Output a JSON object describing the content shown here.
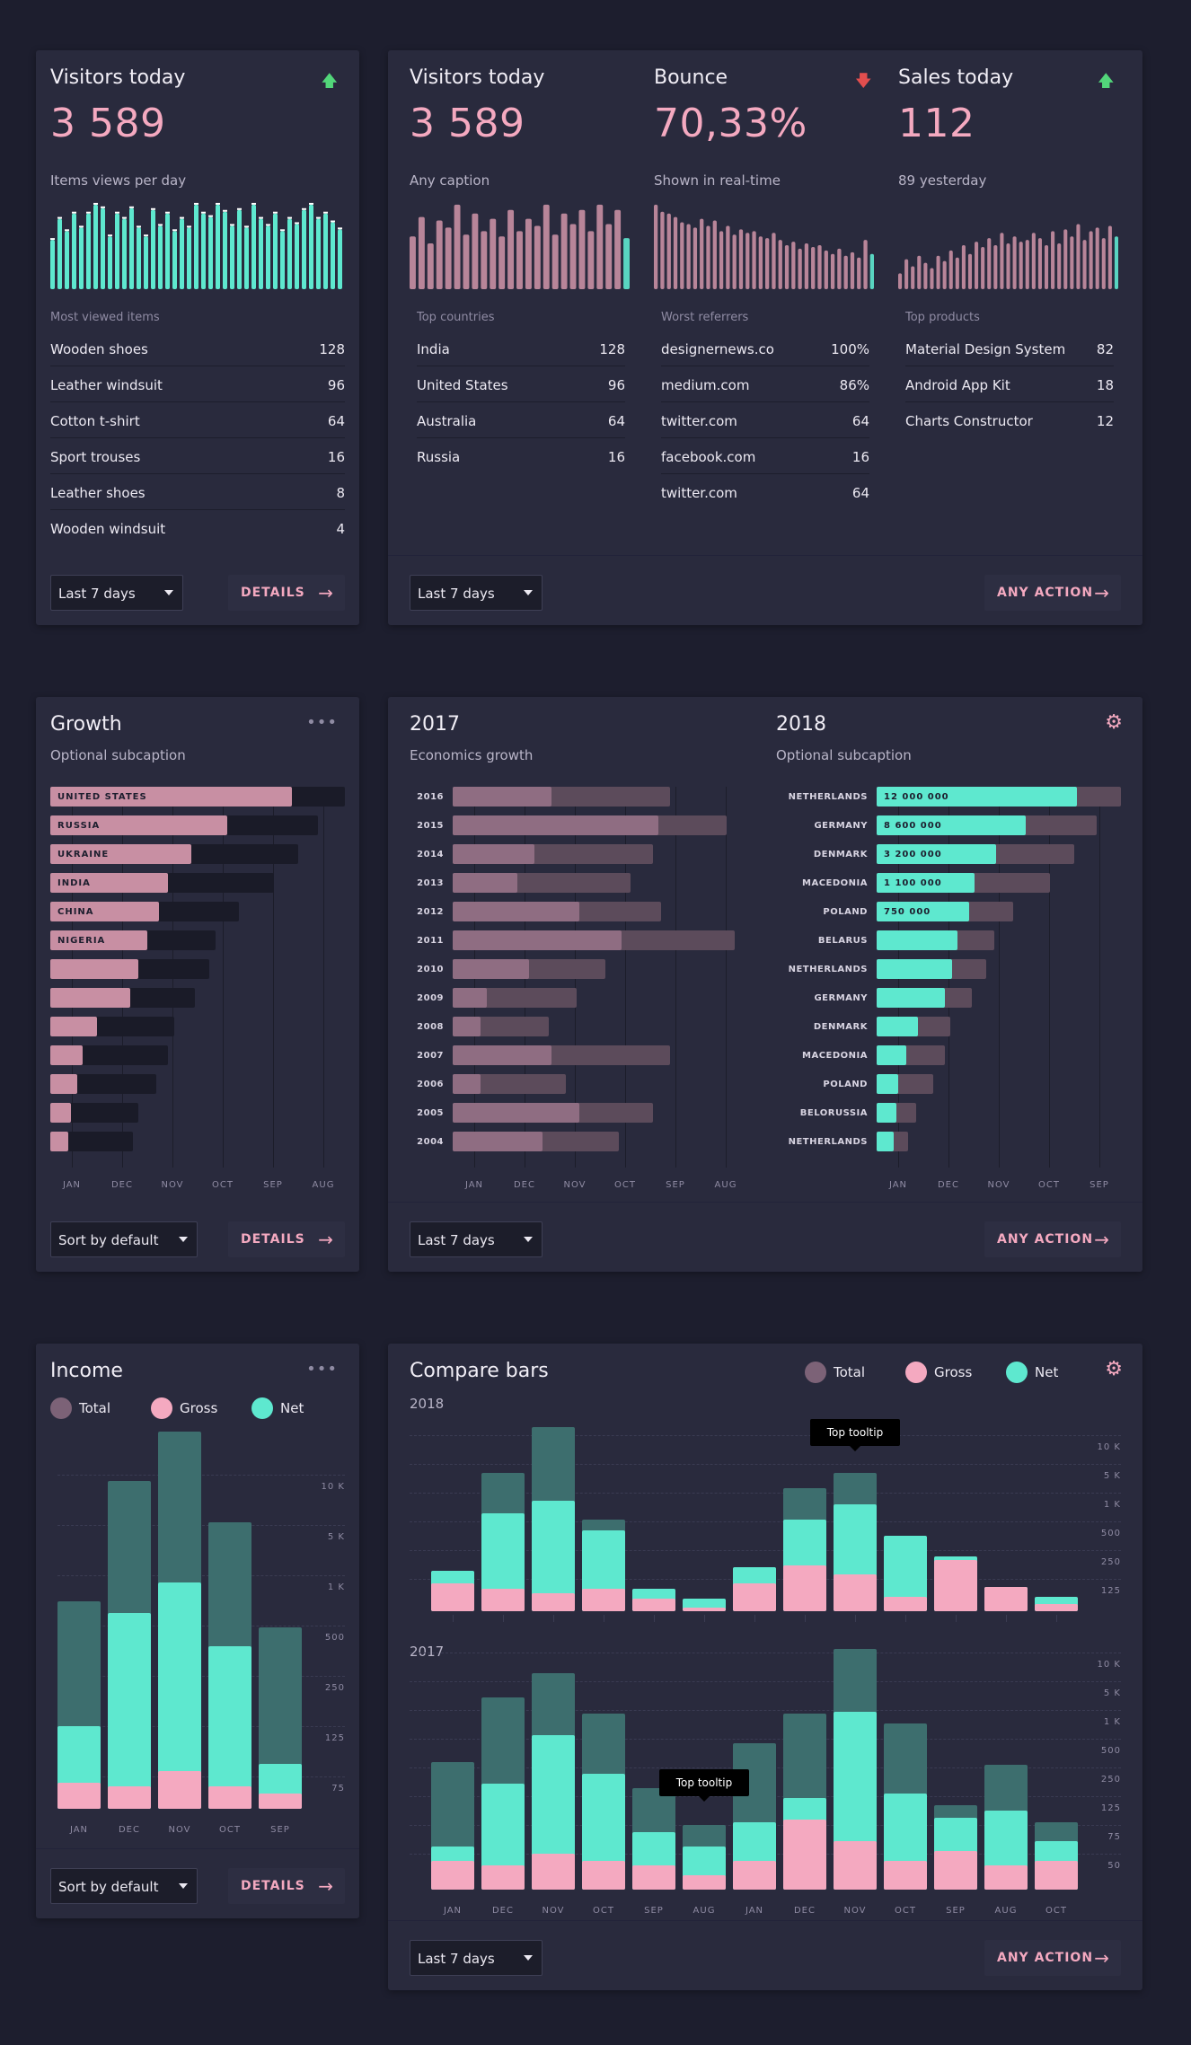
{
  "colors": {
    "pink": "#f4a9c0",
    "mint": "#5ee8cf",
    "darkMint": "#3d6e6e",
    "mauve": "#7c6277",
    "bg": "#1d1e2e",
    "card": "#292a3d",
    "up": "#52d67a",
    "down": "#e24e4e"
  },
  "card1": {
    "title": "Visitors today",
    "value": "3 589",
    "caption": "Items views per day",
    "list_title": "Most viewed items",
    "items": [
      {
        "label": "Wooden shoes",
        "value": "128"
      },
      {
        "label": "Leather windsuit",
        "value": "96"
      },
      {
        "label": "Cotton t-shirt",
        "value": "64"
      },
      {
        "label": "Sport trouses",
        "value": "16"
      },
      {
        "label": "Leather shoes",
        "value": "8"
      },
      {
        "label": "Wooden windsuit",
        "value": "4"
      }
    ],
    "dropdown": "Last 7 days",
    "action": "DETAILS",
    "spark": [
      56,
      80,
      66,
      86,
      70,
      86,
      96,
      92,
      60,
      86,
      80,
      92,
      70,
      60,
      90,
      72,
      86,
      66,
      80,
      70,
      96,
      86,
      82,
      96,
      88,
      72,
      90,
      70,
      96,
      80,
      72,
      86,
      66,
      80,
      74,
      90,
      96,
      80,
      86,
      76,
      68
    ]
  },
  "card2": {
    "col1": {
      "title": "Visitors today",
      "value": "3 589",
      "caption": "Any caption",
      "list_title": "Top countries",
      "items": [
        {
          "label": "India",
          "value": "128"
        },
        {
          "label": "United States",
          "value": "96"
        },
        {
          "label": "Australia",
          "value": "64"
        },
        {
          "label": "Russia",
          "value": "16"
        }
      ],
      "spark": [
        60,
        82,
        52,
        78,
        70,
        96,
        62,
        86,
        66,
        80,
        60,
        90,
        66,
        80,
        72,
        96,
        62,
        86,
        74,
        90,
        66,
        96,
        74,
        90,
        58
      ]
    },
    "col2": {
      "title": "Bounce",
      "value": "70,33%",
      "caption": "Shown in real-time",
      "list_title": "Worst referrers",
      "items": [
        {
          "label": "designernews.co",
          "value": "100%"
        },
        {
          "label": "medium.com",
          "value": "86%"
        },
        {
          "label": "twitter.com",
          "value": "64"
        },
        {
          "label": "facebook.com",
          "value": "16"
        },
        {
          "label": "twitter.com",
          "value": "64"
        }
      ],
      "spark": [
        96,
        88,
        86,
        82,
        76,
        74,
        70,
        80,
        72,
        78,
        66,
        72,
        62,
        68,
        64,
        66,
        60,
        58,
        64,
        56,
        50,
        54,
        46,
        52,
        48,
        50,
        44,
        40,
        46,
        38,
        42,
        36,
        56,
        40
      ]
    },
    "col3": {
      "title": "Sales today",
      "value": "112",
      "caption": "89 yesterday",
      "list_title": "Top products",
      "items": [
        {
          "label": "Material Design System",
          "value": "82"
        },
        {
          "label": "Android App Kit",
          "value": "18"
        },
        {
          "label": "Charts Constructor",
          "value": "12"
        }
      ],
      "spark": [
        18,
        34,
        26,
        38,
        30,
        24,
        38,
        32,
        44,
        36,
        50,
        40,
        54,
        48,
        58,
        50,
        64,
        52,
        60,
        54,
        56,
        64,
        58,
        50,
        66,
        52,
        68,
        60,
        74,
        56,
        66,
        70,
        58,
        72,
        60
      ]
    },
    "dropdown": "Last 7 days",
    "action": "ANY ACTION"
  },
  "card3": {
    "title": "Growth",
    "subtitle": "Optional subcaption",
    "bars": [
      {
        "label": "UNITED STATES",
        "v": 0.82,
        "b": 1.0
      },
      {
        "label": "RUSSIA",
        "v": 0.6,
        "b": 0.91
      },
      {
        "label": "UKRAINE",
        "v": 0.48,
        "b": 0.84
      },
      {
        "label": "INDIA",
        "v": 0.4,
        "b": 0.76
      },
      {
        "label": "CHINA",
        "v": 0.37,
        "b": 0.64
      },
      {
        "label": "NIGERIA",
        "v": 0.33,
        "b": 0.56
      },
      {
        "label": "",
        "v": 0.3,
        "b": 0.54
      },
      {
        "label": "",
        "v": 0.27,
        "b": 0.49
      },
      {
        "label": "",
        "v": 0.16,
        "b": 0.42
      },
      {
        "label": "",
        "v": 0.11,
        "b": 0.4
      },
      {
        "label": "",
        "v": 0.09,
        "b": 0.36
      },
      {
        "label": "",
        "v": 0.07,
        "b": 0.3
      },
      {
        "label": "",
        "v": 0.06,
        "b": 0.28
      }
    ],
    "xaxis": [
      "JAN",
      "DEC",
      "NOV",
      "OCT",
      "SEP",
      "AUG"
    ],
    "dropdown": "Sort by default",
    "action": "DETAILS"
  },
  "card4": {
    "left": {
      "title": "2017",
      "subtitle": "Economics growth",
      "rows": [
        {
          "label": "2016",
          "v": 0.35,
          "b": 0.77
        },
        {
          "label": "2015",
          "v": 0.73,
          "b": 0.97
        },
        {
          "label": "2014",
          "v": 0.29,
          "b": 0.71
        },
        {
          "label": "2013",
          "v": 0.23,
          "b": 0.63
        },
        {
          "label": "2012",
          "v": 0.45,
          "b": 0.74
        },
        {
          "label": "2011",
          "v": 0.6,
          "b": 1.0
        },
        {
          "label": "2010",
          "v": 0.27,
          "b": 0.54
        },
        {
          "label": "2009",
          "v": 0.12,
          "b": 0.44
        },
        {
          "label": "2008",
          "v": 0.1,
          "b": 0.34
        },
        {
          "label": "2007",
          "v": 0.35,
          "b": 0.77
        },
        {
          "label": "2006",
          "v": 0.1,
          "b": 0.4
        },
        {
          "label": "2005",
          "v": 0.45,
          "b": 0.71
        },
        {
          "label": "2004",
          "v": 0.32,
          "b": 0.59
        }
      ],
      "xaxis": [
        "JAN",
        "DEC",
        "NOV",
        "OCT",
        "SEP",
        "AUG"
      ]
    },
    "right": {
      "title": "2018",
      "subtitle": "Optional subcaption",
      "rows": [
        {
          "label": "NETHERLANDS",
          "val": "12 000 000",
          "v": 0.82,
          "b": 1.0
        },
        {
          "label": "GERMANY",
          "val": "8 600 000",
          "v": 0.61,
          "b": 0.9
        },
        {
          "label": "DENMARK",
          "val": "3 200 000",
          "v": 0.49,
          "b": 0.81
        },
        {
          "label": "MACEDONIA",
          "val": "1 100 000",
          "v": 0.4,
          "b": 0.71
        },
        {
          "label": "POLAND",
          "val": "750 000",
          "v": 0.38,
          "b": 0.56
        },
        {
          "label": "BELARUS",
          "val": "",
          "v": 0.33,
          "b": 0.48
        },
        {
          "label": "NETHERLANDS",
          "val": "",
          "v": 0.31,
          "b": 0.45
        },
        {
          "label": "GERMANY",
          "val": "",
          "v": 0.28,
          "b": 0.39
        },
        {
          "label": "DENMARK",
          "val": "",
          "v": 0.17,
          "b": 0.3
        },
        {
          "label": "MACEDONIA",
          "val": "",
          "v": 0.12,
          "b": 0.28
        },
        {
          "label": "POLAND",
          "val": "",
          "v": 0.09,
          "b": 0.23
        },
        {
          "label": "BELORUSSIA",
          "val": "",
          "v": 0.08,
          "b": 0.16
        },
        {
          "label": "NETHERLANDS",
          "val": "",
          "v": 0.07,
          "b": 0.13
        }
      ],
      "xaxis": [
        "JAN",
        "DEC",
        "NOV",
        "OCT",
        "SEP"
      ]
    },
    "dropdown": "Last 7 days",
    "action": "ANY ACTION"
  },
  "card5": {
    "title": "Income",
    "legend": [
      "Total",
      "Gross",
      "Net"
    ],
    "yaxis": [
      "10 K",
      "5 K",
      "1 K",
      "500",
      "250",
      "125",
      "75"
    ],
    "cols": [
      {
        "label": "JAN",
        "total": 0.55,
        "net": 0.22,
        "gross": 0.07
      },
      {
        "label": "DEC",
        "total": 0.87,
        "net": 0.52,
        "gross": 0.06
      },
      {
        "label": "NOV",
        "total": 1.0,
        "net": 0.6,
        "gross": 0.1
      },
      {
        "label": "OCT",
        "total": 0.76,
        "net": 0.43,
        "gross": 0.06
      },
      {
        "label": "SEP",
        "total": 0.48,
        "net": 0.12,
        "gross": 0.04
      }
    ],
    "dropdown": "Sort by default",
    "action": "DETAILS"
  },
  "card6": {
    "title": "Compare bars",
    "legend": [
      "Total",
      "Gross",
      "Net"
    ],
    "y2018": "2018",
    "y2017": "2017",
    "yaxis2018": [
      "10 K",
      "5 K",
      "1 K",
      "500",
      "250",
      "125"
    ],
    "yaxis2017": [
      "10 K",
      "5 K",
      "1 K",
      "500",
      "250",
      "125",
      "75",
      "50"
    ],
    "top": [
      {
        "total": 0.22,
        "net": 0.22,
        "gross": 0.15
      },
      {
        "total": 0.75,
        "net": 0.53,
        "gross": 0.12
      },
      {
        "total": 1.0,
        "net": 0.6,
        "gross": 0.1
      },
      {
        "total": 0.5,
        "net": 0.44,
        "gross": 0.12
      },
      {
        "total": 0.12,
        "net": 0.12,
        "gross": 0.07
      },
      {
        "total": 0.07,
        "net": 0.07,
        "gross": 0.02
      },
      {
        "total": 0.24,
        "net": 0.24,
        "gross": 0.15
      },
      {
        "total": 0.67,
        "net": 0.5,
        "gross": 0.25
      },
      {
        "total": 0.75,
        "net": 0.58,
        "gross": 0.2
      },
      {
        "total": 0.41,
        "net": 0.41,
        "gross": 0.08
      },
      {
        "total": 0.3,
        "net": 0.3,
        "gross": 0.28
      },
      {
        "total": 0.13,
        "net": 0.13,
        "gross": 0.13
      },
      {
        "total": 0.08,
        "net": 0.08,
        "gross": 0.04
      }
    ],
    "bottom": [
      {
        "total": 0.53,
        "net": 0.18,
        "gross": 0.12
      },
      {
        "total": 0.8,
        "net": 0.44,
        "gross": 0.1
      },
      {
        "total": 0.9,
        "net": 0.64,
        "gross": 0.15
      },
      {
        "total": 0.73,
        "net": 0.48,
        "gross": 0.12
      },
      {
        "total": 0.42,
        "net": 0.24,
        "gross": 0.1
      },
      {
        "total": 0.27,
        "net": 0.18,
        "gross": 0.06
      },
      {
        "total": 0.61,
        "net": 0.28,
        "gross": 0.12
      },
      {
        "total": 0.73,
        "net": 0.38,
        "gross": 0.29
      },
      {
        "total": 1.0,
        "net": 0.74,
        "gross": 0.2
      },
      {
        "total": 0.69,
        "net": 0.4,
        "gross": 0.12
      },
      {
        "total": 0.35,
        "net": 0.3,
        "gross": 0.16
      },
      {
        "total": 0.52,
        "net": 0.33,
        "gross": 0.1
      },
      {
        "total": 0.28,
        "net": 0.2,
        "gross": 0.12
      }
    ],
    "xaxis": [
      "JAN",
      "DEC",
      "NOV",
      "OCT",
      "SEP",
      "AUG",
      "JAN",
      "DEC",
      "NOV",
      "OCT",
      "SEP",
      "AUG",
      "OCT"
    ],
    "tooltip1": "Top tooltip",
    "tooltip2": "Top tooltip",
    "dropdown": "Last 7 days",
    "action": "ANY ACTION"
  }
}
